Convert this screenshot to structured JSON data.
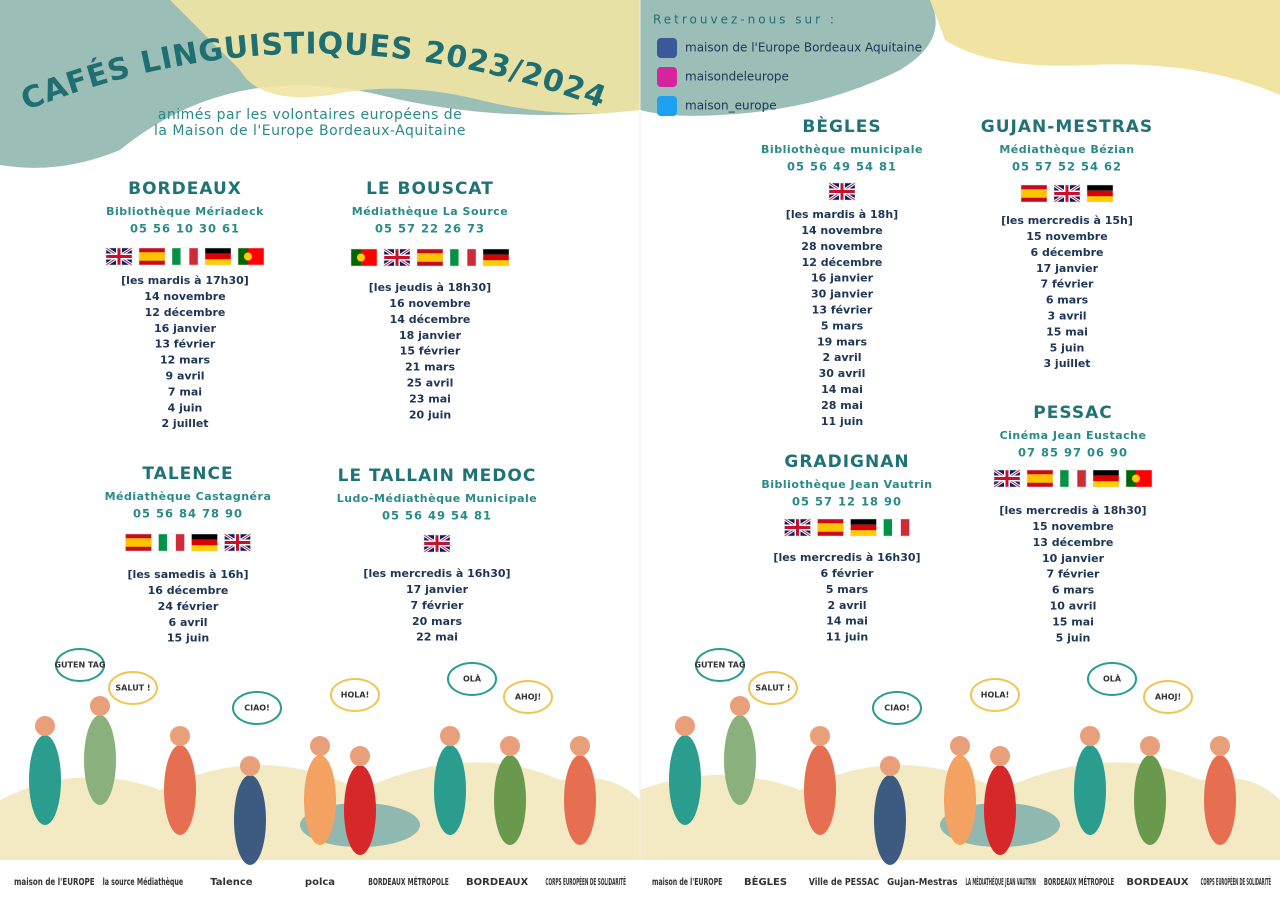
{
  "header": {
    "title": "CAFÉS LINGUISTIQUES 2023/2024",
    "subtitle": [
      "animés par les volontaires européens de",
      "la Maison de l'Europe Bordeaux-Aquitaine"
    ]
  },
  "social": {
    "heading": "Retrouvez-nous sur :",
    "items": [
      "maison de l'Europe Bordeaux Aquitaine",
      "maisondeleurope",
      "maison_europe"
    ]
  },
  "venues": [
    {
      "city": "BORDEAUX",
      "place": "Bibliothèque Mériadeck",
      "phone": "05 56 10 30 61",
      "schedule": "[les mardis à 17h30]",
      "dates": [
        "14 novembre",
        "12 décembre",
        "16 janvier",
        "13 février",
        "12 mars",
        "9 avril",
        "7 mai",
        "4 juin",
        "2 juillet"
      ]
    },
    {
      "city": "LE BOUSCAT",
      "place": "Médiathèque La Source",
      "phone": "05 57 22 26 73",
      "schedule": "[les jeudis à 18h30]",
      "dates": [
        "16 novembre",
        "14 décembre",
        "18 janvier",
        "15 février",
        "21 mars",
        "25 avril",
        "23 mai",
        "20 juin"
      ]
    },
    {
      "city": "TALENCE",
      "place": "Médiathèque Castagnéra",
      "phone": "05 56 84 78 90",
      "schedule": "[les samedis à 16h]",
      "dates": [
        "16 décembre",
        "24 février",
        "6 avril",
        "15 juin"
      ]
    },
    {
      "city": "LE TALLAIN MEDOC",
      "place": "Ludo-Médiathèque Municipale",
      "phone": "05 56 49 54 81",
      "schedule": "[les mercredis à 16h30]",
      "dates": [
        "17 janvier",
        "7 février",
        "20 mars",
        "22 mai"
      ]
    },
    {
      "city": "BÈGLES",
      "place": "Bibliothèque municipale",
      "phone": "05 56 49 54 81",
      "schedule": "[les mardis à 18h]",
      "dates": [
        "14 novembre",
        "28 novembre",
        "12 décembre",
        "16 janvier",
        "30 janvier",
        "13 février",
        "5 mars",
        "19 mars",
        "2 avril",
        "30 avril",
        "14 mai",
        "28 mai",
        "11 juin"
      ]
    },
    {
      "city": "GUJAN-MESTRAS",
      "place": "Médiathèque Bézian",
      "phone": "05 57 52 54 62",
      "schedule": "[les mercredis à 15h]",
      "dates": [
        "15 novembre",
        "6 décembre",
        "17 janvier",
        "7 février",
        "6 mars",
        "3 avril",
        "15 mai",
        "5 juin",
        "3 juillet"
      ]
    },
    {
      "city": "GRADIGNAN",
      "place": "Bibliothèque Jean Vautrin",
      "phone": "05 57 12 18 90",
      "schedule": "[les mercredis à 16h30]",
      "dates": [
        "6 février",
        "5 mars",
        "2 avril",
        "14 mai",
        "11 juin"
      ]
    },
    {
      "city": "PESSAC",
      "place": "Cinéma Jean Eustache",
      "phone": "07 85 97 06 90",
      "schedule": "[les mercredis à 18h30]",
      "dates": [
        "15 novembre",
        "13 décembre",
        "10 janvier",
        "7 février",
        "6 mars",
        "10 avril",
        "15 mai",
        "5 juin"
      ]
    }
  ],
  "bubbles": [
    "GUTEN TAG",
    "SALUT !",
    "CIAO!",
    "HOLA!",
    "OLÀ",
    "AHOJ!"
  ],
  "footer": {
    "left": [
      "maison de l'EUROPE",
      "la source Médiathèque",
      "Talence",
      "polca",
      "BORDEAUX MÉTROPOLE",
      "BORDEAUX",
      "CORPS EUROPÉEN DE SOLIDARITÉ"
    ],
    "right": [
      "maison de l'EUROPE",
      "BÈGLES",
      "Ville de PESSAC",
      "Gujan-Mestras",
      "LA MÉDIATHÈQUE JEAN VAUTRIN",
      "BORDEAUX MÉTROPOLE",
      "BORDEAUX",
      "CORPS EUROPÉEN DE SOLIDARITÉ"
    ]
  }
}
